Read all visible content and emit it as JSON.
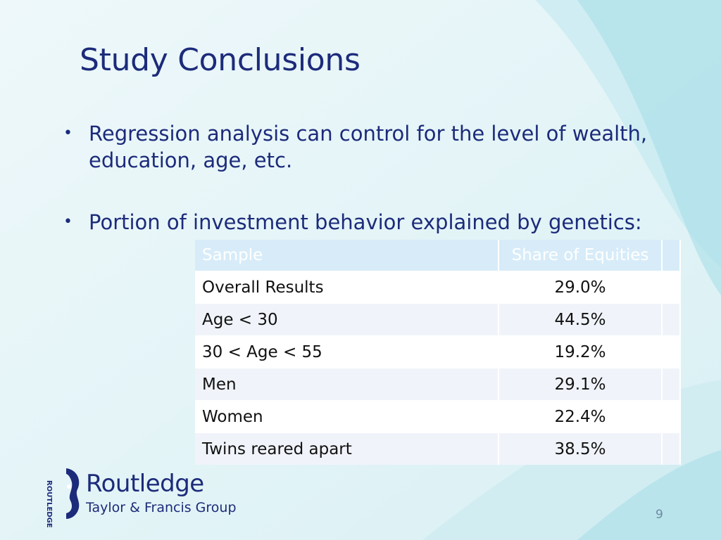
{
  "slide": {
    "title": "Study Conclusions",
    "bullets": [
      "Regression analysis can control for the level of wealth, education, age, etc.",
      "Portion of investment behavior explained by genetics:"
    ],
    "bullet_glyph": "•",
    "page_number": "9"
  },
  "table": {
    "headers": [
      "Sample",
      "Share of Equities"
    ],
    "rows": [
      {
        "sample": "Overall Results",
        "share": "29.0%"
      },
      {
        "sample": "Age < 30",
        "share": "44.5%"
      },
      {
        "sample": "30 < Age < 55",
        "share": "19.2%"
      },
      {
        "sample": "Men",
        "share": "29.1%"
      },
      {
        "sample": "Women",
        "share": "22.4%"
      },
      {
        "sample": "Twins reared apart",
        "share": "38.5%"
      }
    ]
  },
  "logo": {
    "name": "Routledge",
    "subtitle": "Taylor & Francis Group",
    "vertical_text": "ROUTLEDGE"
  },
  "colors": {
    "title": "#1c2b7a",
    "background": "#e9f6f9",
    "table_header": "#d7ecf8"
  }
}
